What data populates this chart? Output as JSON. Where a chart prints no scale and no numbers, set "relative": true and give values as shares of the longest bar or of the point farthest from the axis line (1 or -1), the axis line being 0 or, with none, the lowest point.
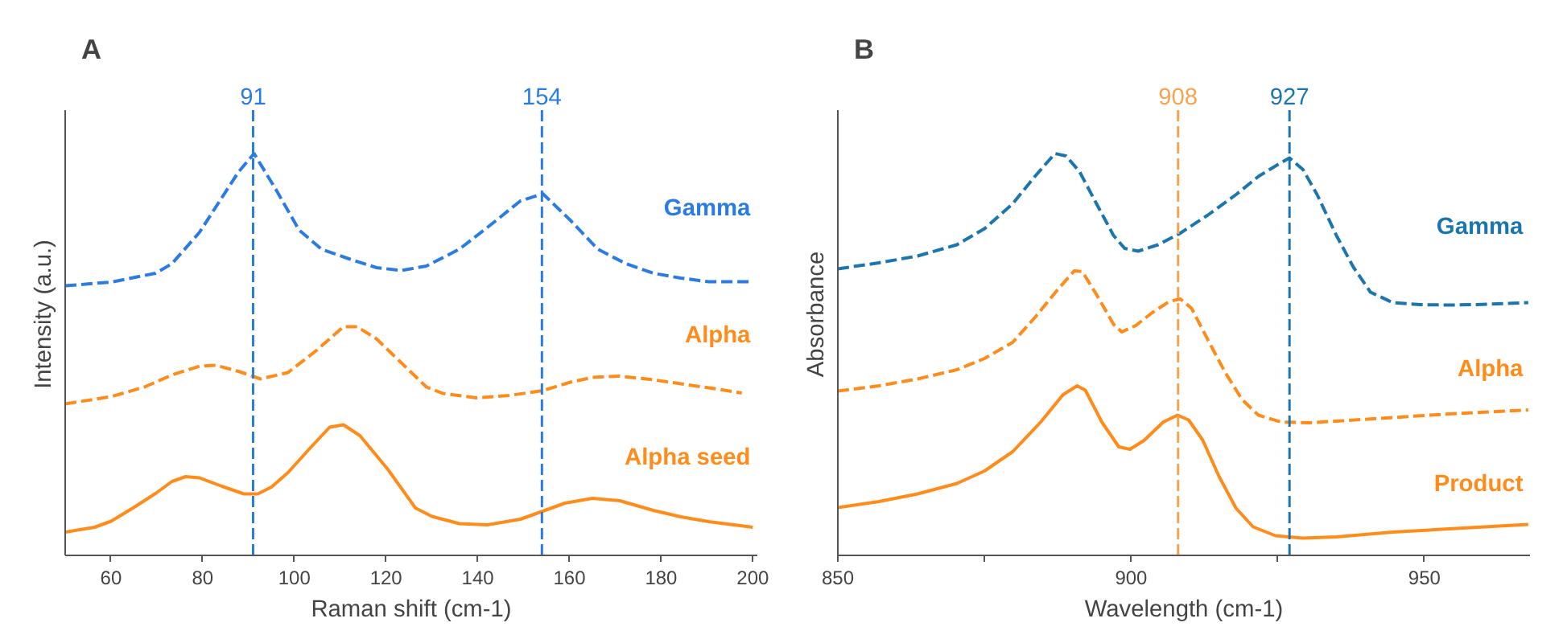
{
  "chart_data": [
    {
      "type": "line",
      "title": "A",
      "xlabel": "Raman shift (cm-1)",
      "ylabel": "Intensity (a.u.)",
      "relative": true,
      "xlim": [
        50,
        201
      ],
      "xticks": [
        60,
        80,
        100,
        120,
        140,
        160,
        180,
        200
      ],
      "grid": false,
      "series": [
        {
          "name": "Gamma",
          "color": "#2a7be4",
          "line_style": "dashed",
          "x": [
            50,
            60,
            69.7,
            73.3,
            79.3,
            87.8,
            91.2,
            96.2,
            101,
            105.9,
            111.9,
            117.9,
            123.4,
            128.8,
            136,
            142.1,
            149.3,
            154.2,
            160.2,
            166.2,
            172.3,
            178.3,
            184.3,
            190.4,
            200
          ],
          "values": [
            0.671,
            0.68,
            0.702,
            0.726,
            0.804,
            0.954,
            1.0,
            0.906,
            0.81,
            0.762,
            0.738,
            0.716,
            0.709,
            0.72,
            0.762,
            0.816,
            0.882,
            0.9,
            0.834,
            0.762,
            0.726,
            0.702,
            0.69,
            0.681,
            0.681
          ]
        },
        {
          "name": "Alpha",
          "color": "#ff8c1a",
          "line_style": "dashed",
          "x": [
            50,
            60,
            67.3,
            73.3,
            79.3,
            82.9,
            87.8,
            92.6,
            98.6,
            104.7,
            110.7,
            113.7,
            117.9,
            122.8,
            128.8,
            132.4,
            139.7,
            146.9,
            154.2,
            160.2,
            165,
            171,
            178.3,
            185.5,
            192.8,
            197.6
          ],
          "values": [
            0.377,
            0.395,
            0.419,
            0.449,
            0.471,
            0.473,
            0.458,
            0.439,
            0.455,
            0.509,
            0.569,
            0.569,
            0.539,
            0.485,
            0.419,
            0.403,
            0.392,
            0.398,
            0.41,
            0.431,
            0.443,
            0.446,
            0.437,
            0.425,
            0.413,
            0.404
          ]
        },
        {
          "name": "Alpha seed",
          "color": "#ff8c1a",
          "line_style": "solid",
          "x": [
            50,
            56.4,
            60,
            64.8,
            69.7,
            73.3,
            76.3,
            79.3,
            84.2,
            89,
            92,
            95,
            98.6,
            103.5,
            107.7,
            110.7,
            114.3,
            120.4,
            126.4,
            130,
            136,
            142.1,
            149.3,
            154.2,
            159,
            165,
            171,
            178.3,
            184.3,
            190.4,
            200
          ],
          "values": [
            0.058,
            0.07,
            0.085,
            0.118,
            0.154,
            0.184,
            0.196,
            0.193,
            0.172,
            0.153,
            0.153,
            0.17,
            0.206,
            0.268,
            0.319,
            0.325,
            0.298,
            0.214,
            0.118,
            0.097,
            0.079,
            0.076,
            0.09,
            0.11,
            0.13,
            0.142,
            0.136,
            0.112,
            0.096,
            0.084,
            0.07
          ]
        }
      ],
      "ref_lines": [
        {
          "axis": "x",
          "value": 91,
          "label": "91",
          "color": "#2a7be4",
          "line_style": "dashed"
        },
        {
          "axis": "x",
          "value": 154,
          "label": "154",
          "color": "#2a7be4",
          "line_style": "dashed"
        }
      ]
    },
    {
      "type": "line",
      "title": "B",
      "xlabel": "Wavelength (cm-1)",
      "ylabel": "Absorbance",
      "relative": true,
      "xlim": [
        850,
        968
      ],
      "xticks": [
        850,
        {
          "value": 875,
          "label": null
        },
        900,
        {
          "value": 925,
          "label": null
        },
        950
      ],
      "grid": false,
      "series": [
        {
          "name": "Gamma",
          "color": "#1b76b0",
          "line_style": "dashed",
          "x": [
            850,
            857,
            863.6,
            870.3,
            875,
            879.8,
            883.6,
            887,
            888.9,
            891.2,
            894.1,
            897,
            898.9,
            901.2,
            904.6,
            908.4,
            913.1,
            917.9,
            921.7,
            925.5,
            927,
            929.3,
            931.7,
            935,
            937.9,
            940.8,
            944.6,
            949.3,
            954.1,
            958.9,
            967.7
          ],
          "values": [
            0.713,
            0.728,
            0.745,
            0.773,
            0.813,
            0.875,
            0.943,
            1.0,
            0.994,
            0.955,
            0.875,
            0.796,
            0.764,
            0.757,
            0.773,
            0.802,
            0.847,
            0.898,
            0.943,
            0.977,
            0.989,
            0.96,
            0.898,
            0.796,
            0.717,
            0.655,
            0.629,
            0.624,
            0.623,
            0.624,
            0.629
          ]
        },
        {
          "name": "Alpha",
          "color": "#ff8c1a",
          "line_style": "dashed",
          "x": [
            850,
            857,
            863.6,
            870.3,
            875,
            879.8,
            883.6,
            887.4,
            890.3,
            891.7,
            894.1,
            897,
            898.4,
            900.8,
            903.6,
            906.5,
            908.4,
            910.3,
            913.1,
            916,
            918.9,
            921.7,
            925.5,
            930.3,
            935,
            944.6,
            954.1,
            967.7
          ],
          "values": [
            0.409,
            0.422,
            0.439,
            0.462,
            0.49,
            0.53,
            0.592,
            0.66,
            0.708,
            0.706,
            0.649,
            0.575,
            0.556,
            0.572,
            0.604,
            0.632,
            0.638,
            0.615,
            0.536,
            0.456,
            0.388,
            0.349,
            0.332,
            0.33,
            0.334,
            0.343,
            0.352,
            0.362
          ]
        },
        {
          "name": "Product",
          "color": "#ff8c1a",
          "line_style": "solid",
          "x": [
            850,
            857,
            863.6,
            870.3,
            875,
            879.8,
            884.6,
            888.4,
            890.8,
            892.2,
            895,
            897.9,
            899.8,
            902.2,
            905.5,
            907.9,
            909.8,
            912.2,
            915,
            917.9,
            920.8,
            924.6,
            929.3,
            935,
            944.6,
            954.1,
            967.7
          ],
          "values": [
            0.119,
            0.134,
            0.153,
            0.179,
            0.21,
            0.258,
            0.332,
            0.4,
            0.422,
            0.411,
            0.332,
            0.27,
            0.264,
            0.286,
            0.332,
            0.349,
            0.337,
            0.287,
            0.196,
            0.117,
            0.071,
            0.049,
            0.043,
            0.046,
            0.058,
            0.066,
            0.077
          ]
        }
      ],
      "ref_lines": [
        {
          "axis": "x",
          "value": 908,
          "label": "908",
          "color": "#f7a350",
          "line_style": "dashed"
        },
        {
          "axis": "x",
          "value": 927,
          "label": "927",
          "color": "#1b76b0",
          "line_style": "dashed"
        }
      ]
    }
  ]
}
